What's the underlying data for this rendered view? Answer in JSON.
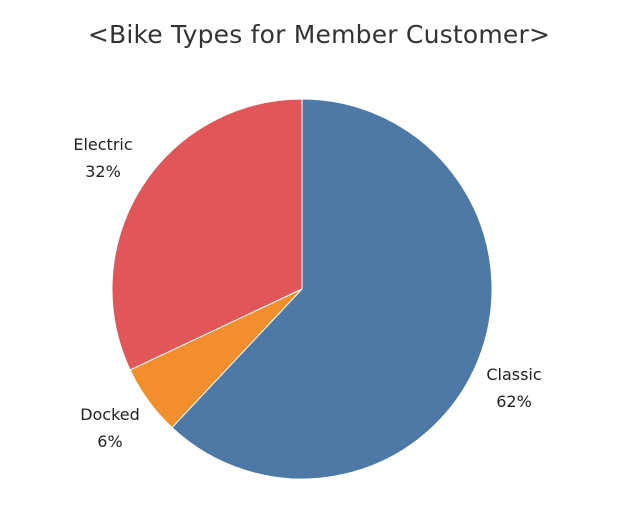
{
  "chart_data": {
    "type": "pie",
    "title": "<Bike Types for Member Customer>",
    "slices": [
      {
        "name": "Classic",
        "percent_label": "62%",
        "value": 62,
        "color": "#4e79a7"
      },
      {
        "name": "Docked",
        "percent_label": "6%",
        "value": 6,
        "color": "#f28e2b"
      },
      {
        "name": "Electric",
        "percent_label": "32%",
        "value": 32,
        "color": "#e15759"
      }
    ],
    "start_angle": "12 o'clock",
    "direction": "clockwise"
  }
}
